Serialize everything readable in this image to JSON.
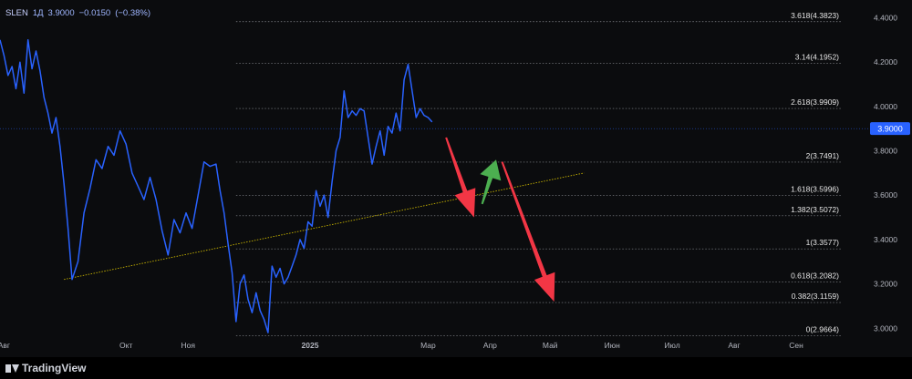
{
  "legend": {
    "symbol": "SLEN",
    "interval": "1Д",
    "price": "3.9000",
    "change": "−0.0150",
    "change_pct": "(−0.38%)"
  },
  "brand": {
    "name": "TradingView"
  },
  "chart_data": {
    "type": "line",
    "title": "",
    "xlabel": "",
    "ylabel": "",
    "ylim": [
      2.96,
      4.48
    ],
    "y_ticks": [
      "3.0000",
      "3.2000",
      "3.4000",
      "3.6000",
      "3.8000",
      "4.0000",
      "4.2000",
      "4.4000"
    ],
    "x_ticks": [
      {
        "label": "Авг",
        "day": 0
      },
      {
        "label": "Окт",
        "day": 61
      },
      {
        "label": "Ноя",
        "day": 92
      },
      {
        "label": "2025",
        "day": 153
      },
      {
        "label": "Мар",
        "day": 212
      },
      {
        "label": "Апр",
        "day": 243
      },
      {
        "label": "Май",
        "day": 273
      },
      {
        "label": "Июн",
        "day": 304
      },
      {
        "label": "Июл",
        "day": 334
      },
      {
        "label": "Авг",
        "day": 365
      },
      {
        "label": "Сен",
        "day": 396
      }
    ],
    "xlim": [
      -2,
      432
    ],
    "current_price": {
      "value": 3.9,
      "label": "3.9000"
    },
    "series": [
      {
        "color": "#2962ff",
        "points": [
          [
            -2,
            4.3
          ],
          [
            0,
            4.23
          ],
          [
            2,
            4.14
          ],
          [
            4,
            4.18
          ],
          [
            6,
            4.08
          ],
          [
            8,
            4.2
          ],
          [
            10,
            4.06
          ],
          [
            12,
            4.3
          ],
          [
            14,
            4.17
          ],
          [
            16,
            4.25
          ],
          [
            18,
            4.16
          ],
          [
            20,
            4.04
          ],
          [
            22,
            3.97
          ],
          [
            24,
            3.88
          ],
          [
            26,
            3.95
          ],
          [
            28,
            3.82
          ],
          [
            30,
            3.65
          ],
          [
            32,
            3.45
          ],
          [
            34,
            3.22
          ],
          [
            37,
            3.3
          ],
          [
            40,
            3.52
          ],
          [
            43,
            3.63
          ],
          [
            46,
            3.76
          ],
          [
            49,
            3.72
          ],
          [
            52,
            3.82
          ],
          [
            55,
            3.78
          ],
          [
            58,
            3.89
          ],
          [
            61,
            3.83
          ],
          [
            64,
            3.7
          ],
          [
            67,
            3.64
          ],
          [
            70,
            3.58
          ],
          [
            73,
            3.68
          ],
          [
            76,
            3.58
          ],
          [
            79,
            3.44
          ],
          [
            82,
            3.33
          ],
          [
            85,
            3.49
          ],
          [
            88,
            3.43
          ],
          [
            91,
            3.52
          ],
          [
            94,
            3.45
          ],
          [
            97,
            3.6
          ],
          [
            100,
            3.75
          ],
          [
            103,
            3.73
          ],
          [
            106,
            3.74
          ],
          [
            108,
            3.62
          ],
          [
            110,
            3.52
          ],
          [
            112,
            3.38
          ],
          [
            114,
            3.25
          ],
          [
            116,
            3.03
          ],
          [
            118,
            3.2
          ],
          [
            120,
            3.24
          ],
          [
            122,
            3.13
          ],
          [
            124,
            3.07
          ],
          [
            126,
            3.16
          ],
          [
            128,
            3.08
          ],
          [
            130,
            3.04
          ],
          [
            132,
            2.98
          ],
          [
            134,
            3.28
          ],
          [
            136,
            3.23
          ],
          [
            138,
            3.27
          ],
          [
            140,
            3.2
          ],
          [
            142,
            3.23
          ],
          [
            144,
            3.28
          ],
          [
            146,
            3.33
          ],
          [
            148,
            3.4
          ],
          [
            150,
            3.36
          ],
          [
            152,
            3.48
          ],
          [
            154,
            3.46
          ],
          [
            156,
            3.62
          ],
          [
            158,
            3.55
          ],
          [
            160,
            3.6
          ],
          [
            162,
            3.5
          ],
          [
            164,
            3.66
          ],
          [
            166,
            3.8
          ],
          [
            168,
            3.86
          ],
          [
            170,
            4.07
          ],
          [
            172,
            3.95
          ],
          [
            174,
            3.98
          ],
          [
            176,
            3.96
          ],
          [
            178,
            3.99
          ],
          [
            180,
            3.98
          ],
          [
            182,
            3.86
          ],
          [
            184,
            3.74
          ],
          [
            186,
            3.82
          ],
          [
            188,
            3.89
          ],
          [
            190,
            3.78
          ],
          [
            192,
            3.91
          ],
          [
            194,
            3.88
          ],
          [
            196,
            3.97
          ],
          [
            198,
            3.89
          ],
          [
            200,
            4.12
          ],
          [
            202,
            4.19
          ],
          [
            204,
            4.07
          ],
          [
            206,
            3.95
          ],
          [
            208,
            3.99
          ],
          [
            210,
            3.96
          ],
          [
            212,
            3.95
          ],
          [
            214,
            3.93
          ]
        ]
      }
    ],
    "trendline": {
      "from": [
        30,
        3.22
      ],
      "to": [
        290,
        3.7
      ],
      "color": "#c8b400"
    },
    "fibonacci": {
      "start_day": 116,
      "levels": [
        {
          "label": "0(2.9664)",
          "value": 2.9664
        },
        {
          "label": "0.382(3.1159)",
          "value": 3.1159
        },
        {
          "label": "0.618(3.2082)",
          "value": 3.2082
        },
        {
          "label": "1(3.3577)",
          "value": 3.3577
        },
        {
          "label": "1.382(3.5072)",
          "value": 3.5072
        },
        {
          "label": "1.618(3.5996)",
          "value": 3.5996
        },
        {
          "label": "2(3.7491)",
          "value": 3.7491
        },
        {
          "label": "2.618(3.9909)",
          "value": 3.9909
        },
        {
          "label": "3.14(4.1952)",
          "value": 4.1952
        },
        {
          "label": "3.618(4.3823)",
          "value": 4.3823
        }
      ]
    },
    "arrows": [
      {
        "color": "#f23645",
        "from": [
          221,
          3.86
        ],
        "to": [
          235,
          3.5
        ]
      },
      {
        "color": "#4caf50",
        "from": [
          239,
          3.56
        ],
        "to": [
          246,
          3.76
        ]
      },
      {
        "color": "#f23645",
        "from": [
          249,
          3.75
        ],
        "to": [
          275,
          3.12
        ]
      }
    ]
  }
}
